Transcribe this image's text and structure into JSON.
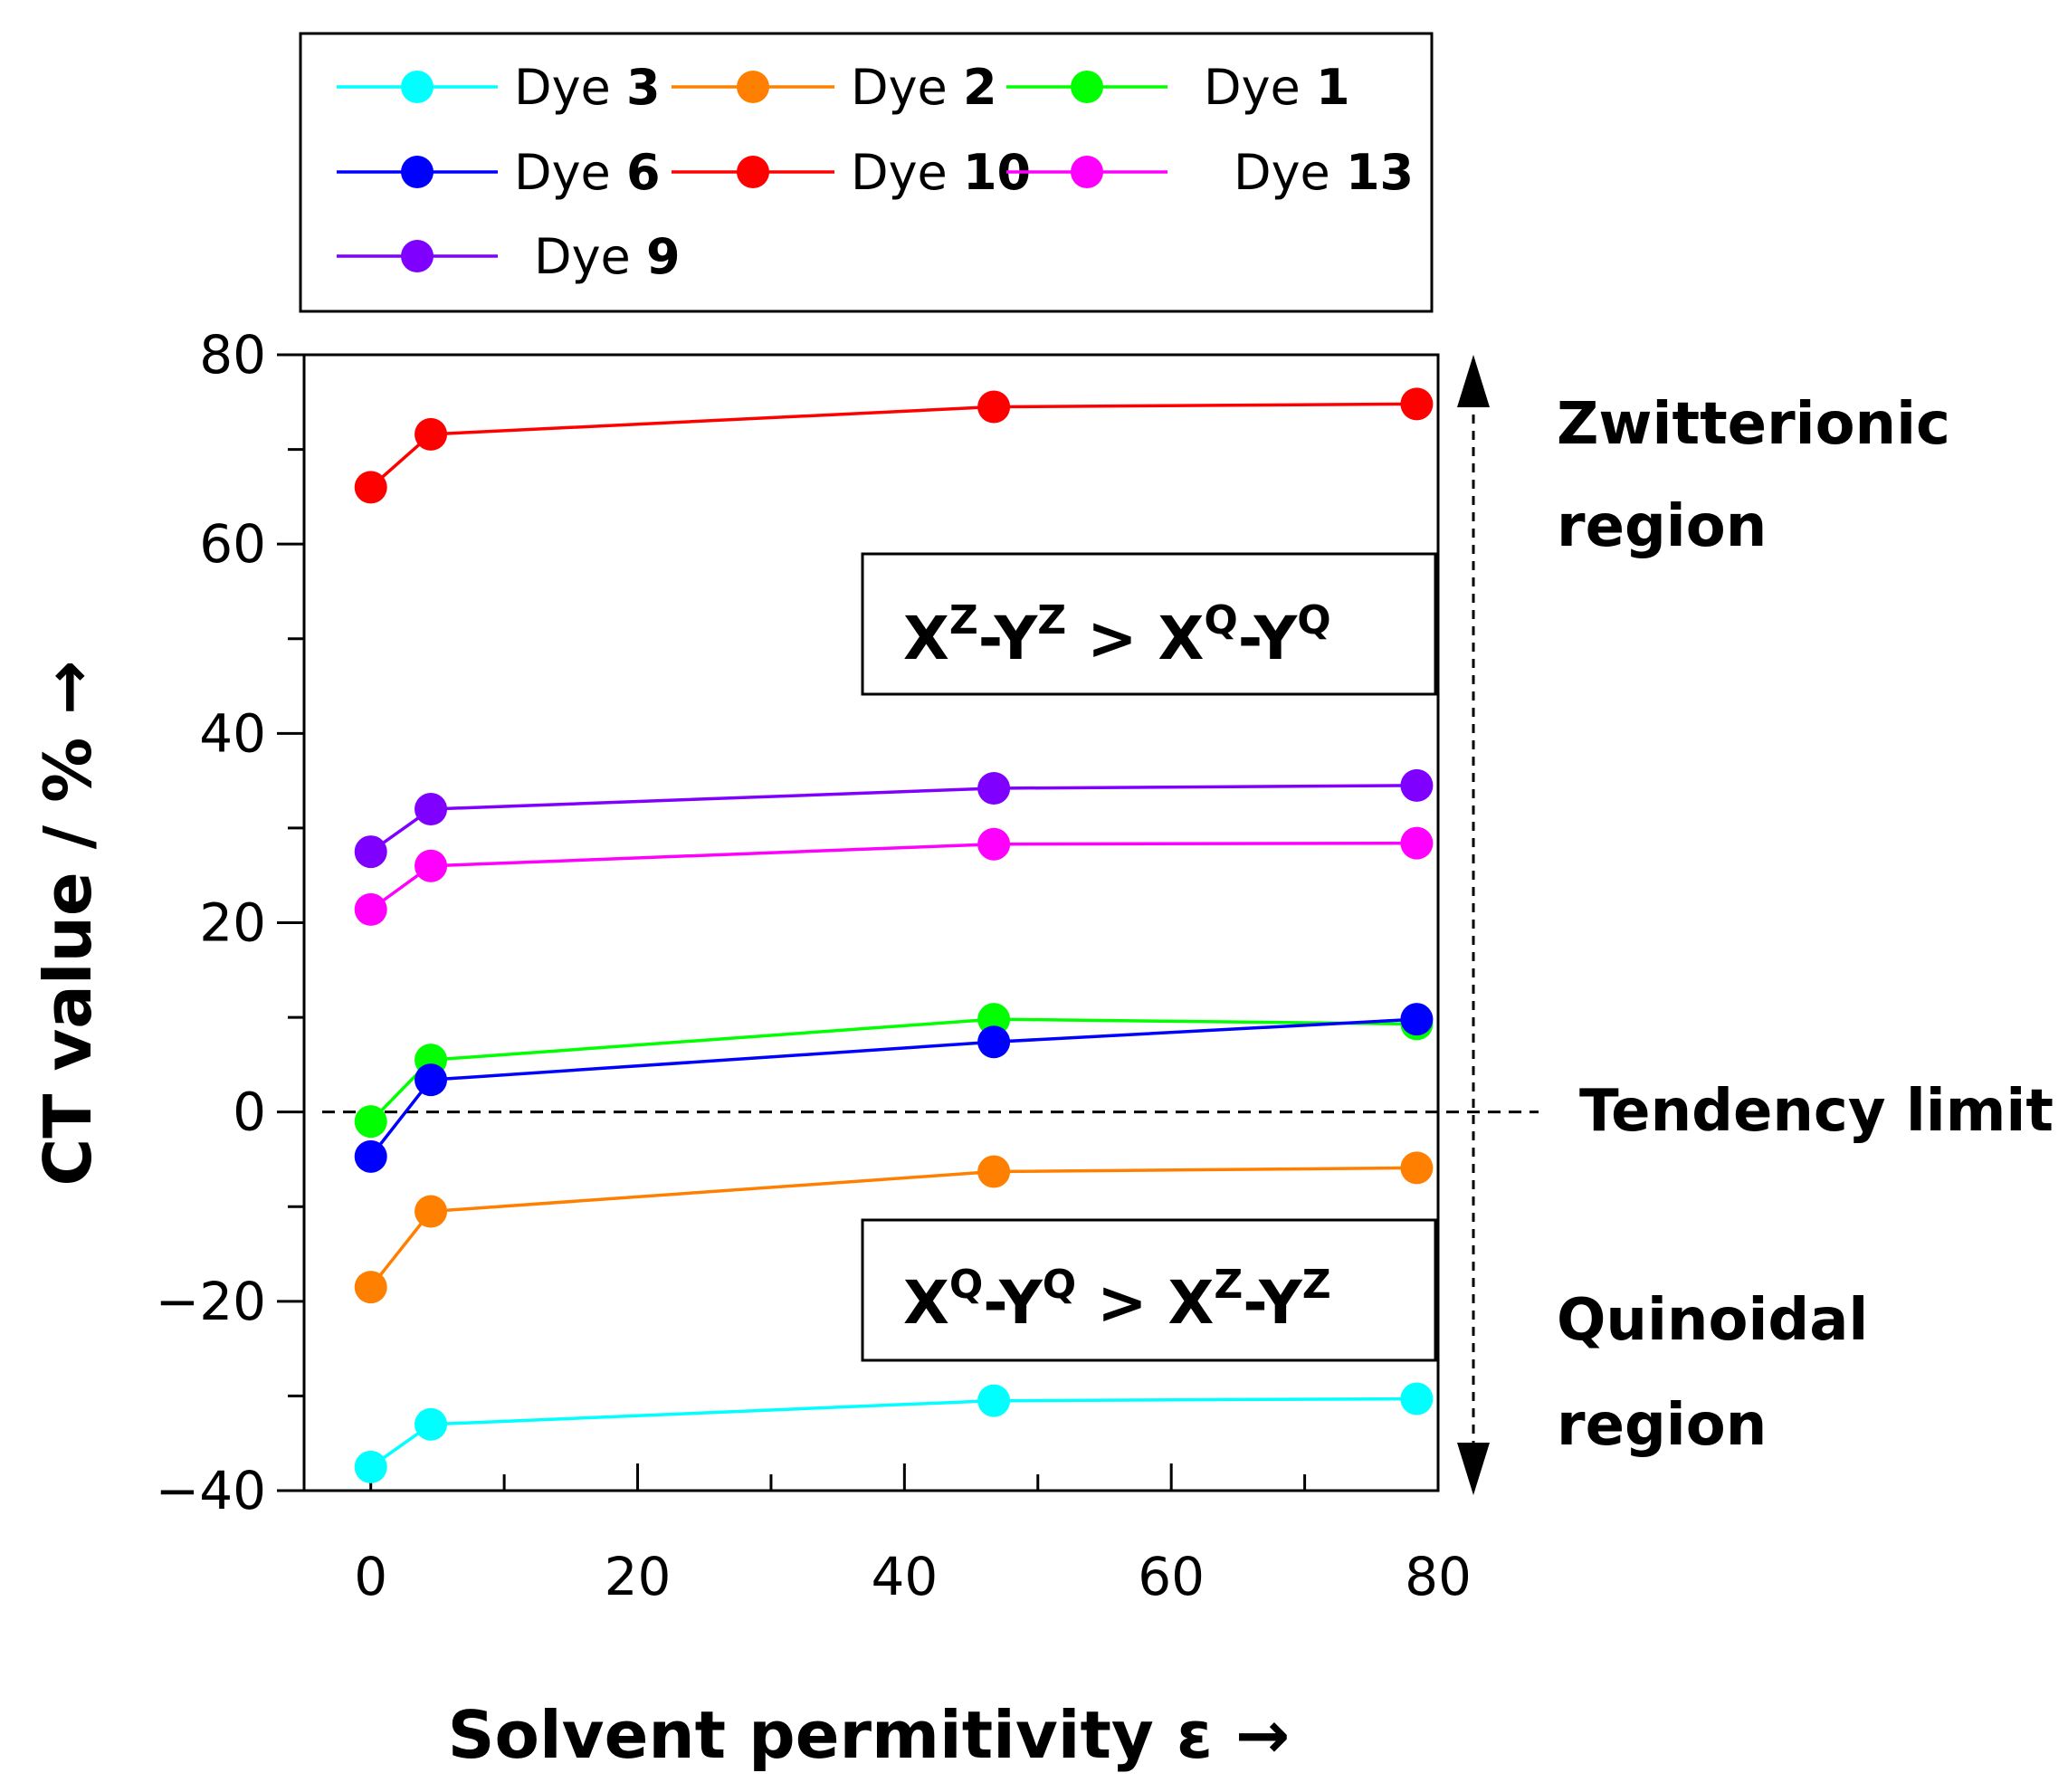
{
  "chart_data": {
    "type": "line",
    "xlabel": "Solvent permitivity ε →",
    "ylabel": "CT value / % →",
    "xlim": [
      -5,
      80
    ],
    "ylim": [
      -40,
      80
    ],
    "x_ticks": [
      "0",
      "20",
      "40",
      "60",
      "80"
    ],
    "y_ticks": [
      "−40",
      "−20",
      "0",
      "20",
      "40",
      "60",
      "80"
    ],
    "x": [
      0,
      4.5,
      46.7,
      78.4
    ],
    "series": [
      {
        "name": "Dye 3",
        "prefix": "Dye",
        "number": "3",
        "color": "#00ffff",
        "values": [
          -37.5,
          -33.0,
          -30.5,
          -30.3
        ]
      },
      {
        "name": "Dye 2",
        "prefix": "Dye",
        "number": "2",
        "color": "#ff8000",
        "values": [
          -18.5,
          -10.5,
          -6.3,
          -5.9
        ]
      },
      {
        "name": "Dye 1",
        "prefix": "Dye",
        "number": "1",
        "color": "#00ff00",
        "values": [
          -1.0,
          5.5,
          9.8,
          9.3
        ]
      },
      {
        "name": "Dye 6",
        "prefix": "Dye",
        "number": "6",
        "color": "#0000ff",
        "values": [
          -4.7,
          3.4,
          7.4,
          9.8
        ]
      },
      {
        "name": "Dye 10",
        "prefix": "Dye",
        "number": "10",
        "color": "#ff0000",
        "values": [
          66.0,
          71.6,
          74.5,
          74.8
        ]
      },
      {
        "name": "Dye 13",
        "prefix": "Dye",
        "number": "13",
        "color": "#ff00ff",
        "values": [
          21.4,
          26.0,
          28.3,
          28.4
        ]
      },
      {
        "name": "Dye 9",
        "prefix": "Dye",
        "number": "9",
        "color": "#8000ff",
        "values": [
          27.5,
          32.0,
          34.2,
          34.5
        ]
      }
    ],
    "reference_line": {
      "y": 0,
      "label": "Tendency limit"
    },
    "annotations": {
      "upper_region": [
        "Zwitterionic",
        "region"
      ],
      "lower_region": [
        "Quinoidal",
        "region"
      ],
      "upper_box": {
        "a": "X",
        "az": "Z",
        "b": "Y",
        "bz": "Z",
        "rel": ">",
        "c": "X",
        "cq": "Q",
        "d": "Y",
        "dq": "Q"
      },
      "lower_box": {
        "a": "X",
        "aq": "Q",
        "b": "Y",
        "bq": "Q",
        "rel": ">",
        "c": "X",
        "cz": "Z",
        "d": "Y",
        "dz": "Z"
      }
    },
    "legend_position": "top",
    "grid": false
  }
}
